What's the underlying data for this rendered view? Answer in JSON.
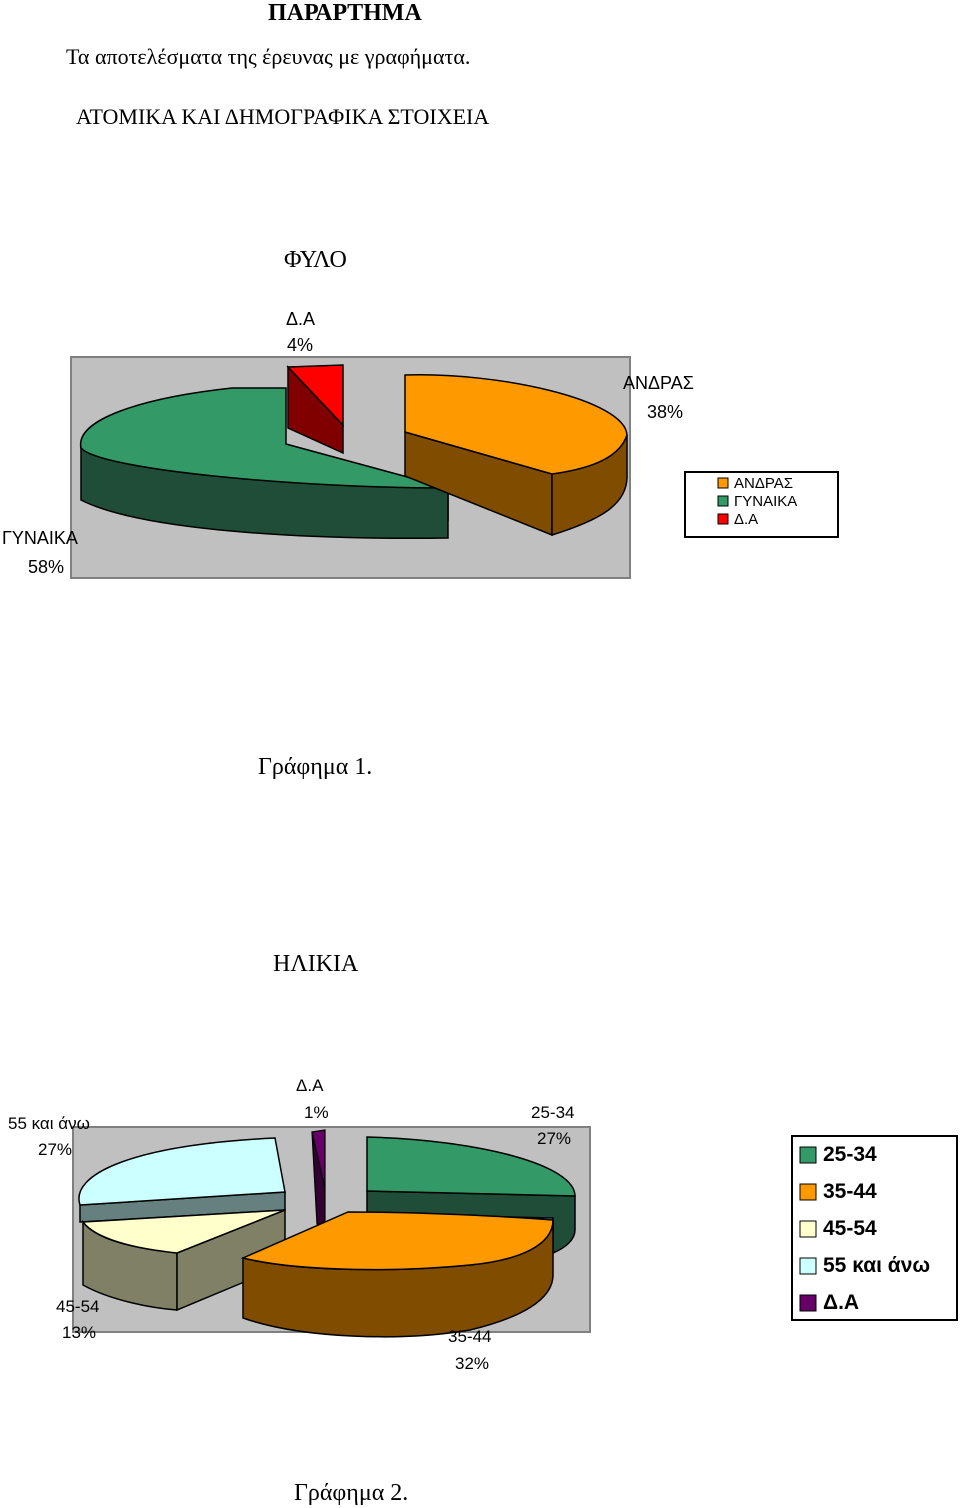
{
  "header": {
    "appendix": "ΠΑΡΑΡΤΗΜΑ",
    "subtitle": "Τα αποτελέσματα της έρευνας με γραφήματα.",
    "section": "ΑΤΟΜΙΚΑ ΚΑΙ ΔΗΜΟΓΡΑΦΙΚΑ ΣΤΟΙΧΕΙΑ"
  },
  "captions": {
    "chart1": "Γράφημα 1.",
    "chart2": "Γράφημα 2."
  },
  "chart_data": [
    {
      "type": "pie",
      "title": "ΦΥΛΟ",
      "three_d": true,
      "legend_position": "right",
      "slices": [
        {
          "label": "ΑΝΔΡΑΣ",
          "value": 38,
          "pct": "38%",
          "color": "#FF9900"
        },
        {
          "label": "ΓΥΝΑΙΚΑ",
          "value": 58,
          "pct": "58%",
          "color": "#339966"
        },
        {
          "label": "Δ.Α",
          "value": 4,
          "pct": "4%",
          "color": "#FF0000"
        }
      ]
    },
    {
      "type": "pie",
      "title": "ΗΛΙΚΙΑ",
      "three_d": true,
      "legend_position": "right",
      "slices": [
        {
          "label": "25-34",
          "value": 27,
          "pct": "27%",
          "color": "#339966"
        },
        {
          "label": "35-44",
          "value": 32,
          "pct": "32%",
          "color": "#FF9900"
        },
        {
          "label": "45-54",
          "value": 13,
          "pct": "13%",
          "color": "#FFFFCC"
        },
        {
          "label": "55 και άνω",
          "value": 27,
          "pct": "27%",
          "color": "#CCFFFF"
        },
        {
          "label": "Δ.Α",
          "value": 1,
          "pct": "1%",
          "color": "#660066"
        }
      ]
    }
  ]
}
